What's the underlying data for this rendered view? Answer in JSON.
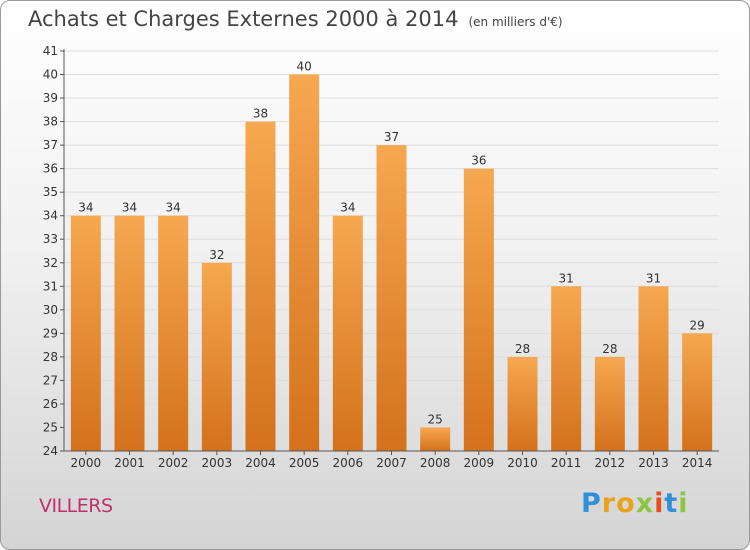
{
  "title": "Achats et Charges Externes 2000 à 2014",
  "subtitle": "(en milliers d'€)",
  "city": "VILLERS",
  "logo": {
    "text": "Proxiti",
    "letters": [
      "P",
      "r",
      "o",
      "x",
      "i",
      "t",
      "i"
    ],
    "colors": [
      "#2f8fd8",
      "#e8a21c",
      "#e8a21c",
      "#8cc63f",
      "#e84e1b",
      "#2f8fd8",
      "#8cc63f"
    ]
  },
  "colors": {
    "bar_top": "#f6a850",
    "bar_bottom": "#d4711c",
    "grid": "#dddddd",
    "axis": "#555555",
    "title": "#444444",
    "city": "#c0306a"
  },
  "chart_data": {
    "type": "bar",
    "title": "Achats et Charges Externes 2000 à 2014",
    "subtitle": "(en milliers d'€)",
    "categories": [
      "2000",
      "2001",
      "2002",
      "2003",
      "2004",
      "2005",
      "2006",
      "2007",
      "2008",
      "2009",
      "2010",
      "2011",
      "2012",
      "2013",
      "2014"
    ],
    "values": [
      34,
      34,
      34,
      32,
      38,
      40,
      34,
      37,
      25,
      36,
      28,
      31,
      28,
      31,
      29
    ],
    "ylim": [
      24,
      41
    ],
    "yticks": [
      24,
      25,
      26,
      27,
      28,
      29,
      30,
      31,
      32,
      33,
      34,
      35,
      36,
      37,
      38,
      39,
      40,
      41
    ],
    "grid": true,
    "data_labels": true
  }
}
